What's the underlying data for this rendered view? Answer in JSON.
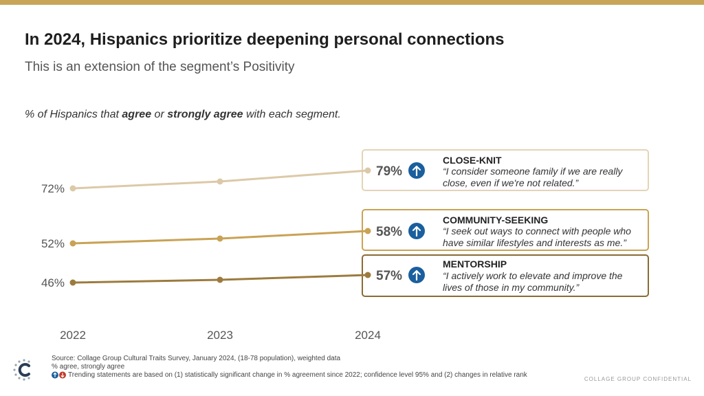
{
  "title": "In 2024, Hispanics prioritize deepening personal connections",
  "subtitle": "This is an extension of the segment’s Positivity",
  "description": {
    "part1": "% of Hispanics that ",
    "bold1": "agree",
    "part2": " or ",
    "bold2": "strongly agree",
    "part3": " with each segment."
  },
  "chart_data": {
    "type": "line",
    "x": [
      "2022",
      "2023",
      "2024"
    ],
    "series": [
      {
        "name": "CLOSE-KNIT",
        "values": [
          72,
          75,
          79
        ],
        "start_label": "72%",
        "end_label": "79%",
        "trend": "up",
        "color": "#dcc9a8"
      },
      {
        "name": "COMMUNITY-SEEKING",
        "values": [
          52,
          53,
          58
        ],
        "start_label": "52%",
        "end_label": "58%",
        "trend": "up",
        "color": "#c9a255"
      },
      {
        "name": "MENTORSHIP",
        "values": [
          46,
          47,
          57
        ],
        "start_label": "46%",
        "end_label": "57%",
        "trend": "up",
        "color": "#9c7b3e"
      }
    ],
    "grid": false
  },
  "cards": [
    {
      "title": "CLOSE-KNIT",
      "quote": "“I consider someone family if we are really\nclose, even if we're not related.”",
      "border": "#e3d4b6"
    },
    {
      "title": "COMMUNITY-SEEKING",
      "quote": "“I seek out ways to connect with people who\nhave similar lifestyles and interests as me.”",
      "border": "#c9a255"
    },
    {
      "title": "MENTORSHIP",
      "quote": " “I actively work to elevate and improve the\nlives of those in my community.”",
      "border": "#8a6b34"
    }
  ],
  "footer": {
    "source": "Source: Collage Group Cultural Traits Survey, January 2024, (18-78 population), weighted data",
    "note": "% agree, strongly agree",
    "trending": "Trending statements are based on (1) statistically significant change in % agreement since 2022; confidence level 95% and (2) changes in relative rank"
  },
  "confidential": "COLLAGE GROUP CONFIDENTIAL",
  "colors": {
    "accent": "#c8a558",
    "trend_up": "#1a5f9e",
    "trend_down": "#c0392b"
  },
  "icons": {
    "trend_up": "arrow-up-circle-icon",
    "trend_down": "arrow-down-circle-icon",
    "logo": "collage-group-logo"
  }
}
